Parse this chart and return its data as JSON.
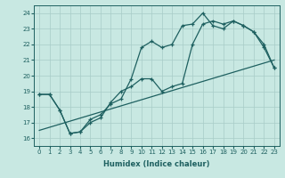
{
  "xlabel": "Humidex (Indice chaleur)",
  "xlim": [
    -0.5,
    23.5
  ],
  "ylim": [
    15.5,
    24.5
  ],
  "xticks": [
    0,
    1,
    2,
    3,
    4,
    5,
    6,
    7,
    8,
    9,
    10,
    11,
    12,
    13,
    14,
    15,
    16,
    17,
    18,
    19,
    20,
    21,
    22,
    23
  ],
  "yticks": [
    16,
    17,
    18,
    19,
    20,
    21,
    22,
    23,
    24
  ],
  "bg_color": "#c8e8e2",
  "grid_color": "#a8ccc8",
  "line_color": "#1e6060",
  "hours": [
    0,
    1,
    2,
    3,
    4,
    5,
    6,
    7,
    8,
    9,
    10,
    11,
    12,
    13,
    14,
    15,
    16,
    17,
    18,
    19,
    20,
    21,
    22,
    23
  ],
  "line1": [
    18.8,
    18.8,
    17.8,
    16.3,
    16.4,
    17.2,
    17.5,
    18.2,
    18.5,
    19.8,
    21.8,
    22.2,
    21.8,
    22.0,
    23.2,
    23.3,
    24.0,
    23.2,
    23.0,
    23.5,
    23.2,
    22.8,
    21.8,
    20.5
  ],
  "line2": [
    18.8,
    18.8,
    17.8,
    16.3,
    16.4,
    17.0,
    17.3,
    18.3,
    19.0,
    19.3,
    19.8,
    19.8,
    19.0,
    19.3,
    19.5,
    22.0,
    23.3,
    23.5,
    23.3,
    23.5,
    23.2,
    22.8,
    22.0,
    20.5
  ],
  "trend_x": [
    0,
    23
  ],
  "trend_y": [
    16.5,
    21.0
  ]
}
